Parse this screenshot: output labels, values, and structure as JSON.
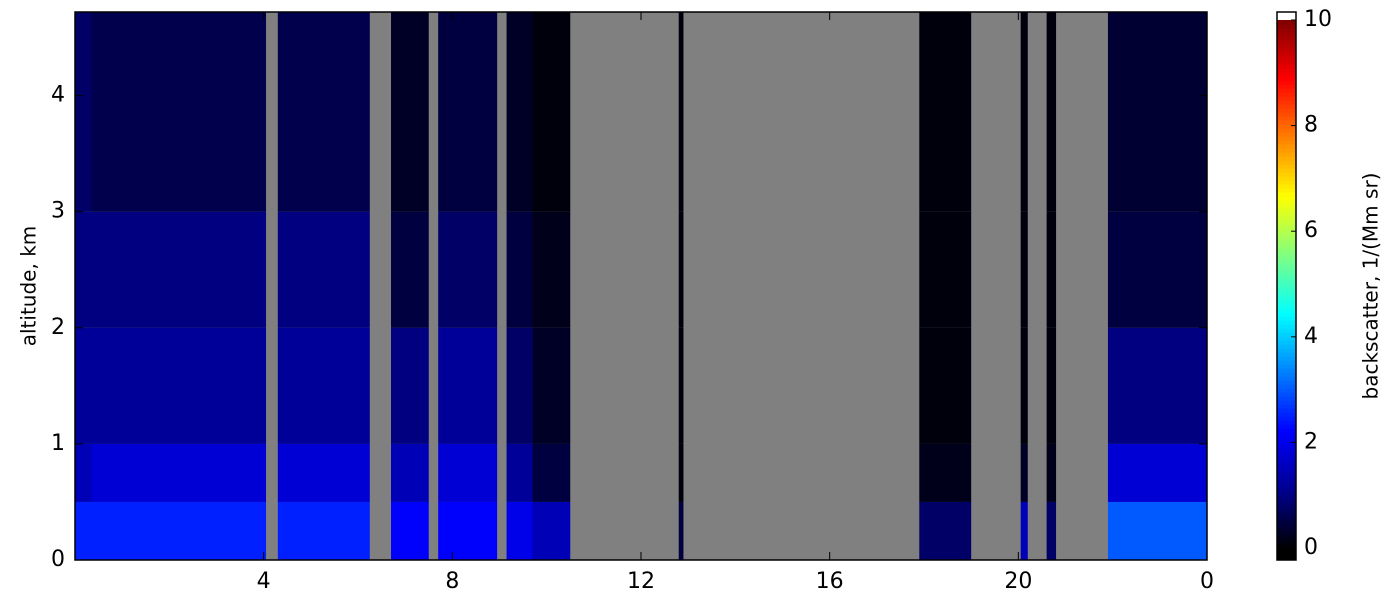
{
  "chart_data": {
    "type": "heatmap",
    "ylabel": "altitude, km",
    "colorbar_label": "backscatter, 1/(Mm sr)",
    "x": [
      0,
      0.35,
      4.05,
      4.3,
      6.25,
      6.7,
      7.5,
      7.7,
      8.95,
      9.15,
      9.7,
      10.5,
      12.8,
      12.9,
      17.9,
      19.0,
      20.05,
      20.2,
      20.6,
      20.8,
      21.9,
      24
    ],
    "y": [
      0,
      0.5,
      1,
      2,
      3,
      4.72
    ],
    "values": [
      [
        2.5,
        1.5,
        1.2,
        1.0,
        0.8
      ],
      [
        2.5,
        1.8,
        1.2,
        1.0,
        0.6
      ],
      [
        null,
        null,
        null,
        null,
        null
      ],
      [
        2.5,
        1.8,
        1.2,
        1.0,
        0.6
      ],
      [
        null,
        null,
        null,
        null,
        null
      ],
      [
        2.2,
        1.5,
        1.0,
        0.5,
        0.3
      ],
      [
        null,
        null,
        null,
        null,
        null
      ],
      [
        2.2,
        1.8,
        1.2,
        0.8,
        0.5
      ],
      [
        null,
        null,
        null,
        null,
        null
      ],
      [
        2.0,
        1.2,
        0.8,
        0.5,
        0.3
      ],
      [
        1.5,
        0.5,
        0.3,
        0.2,
        0.1
      ],
      [
        null,
        null,
        null,
        null,
        null
      ],
      [
        0.5,
        0.1,
        0.1,
        0.1,
        0.1
      ],
      [
        null,
        null,
        null,
        null,
        null
      ],
      [
        0.8,
        0.2,
        0.1,
        0.1,
        0.1
      ],
      [
        null,
        null,
        null,
        null,
        null
      ],
      [
        1.5,
        0.3,
        0.1,
        0.1,
        0.1
      ],
      [
        null,
        null,
        null,
        null,
        null
      ],
      [
        0.8,
        0.2,
        0.1,
        0.1,
        0.1
      ],
      [
        null,
        null,
        null,
        null,
        null
      ],
      [
        3.0,
        1.8,
        1.0,
        0.5,
        0.4
      ]
    ],
    "xlim": [
      0,
      24
    ],
    "xticks": [
      4,
      8,
      12,
      16,
      20,
      {
        "value": 24,
        "label": "0"
      }
    ],
    "ylim": [
      0,
      4.72
    ],
    "yticks": [
      0,
      1,
      2,
      3,
      4
    ],
    "zlim": [
      0,
      10
    ],
    "zticks": [
      0,
      2,
      4,
      6,
      8,
      10
    ],
    "colormap": [
      "#000000",
      "#00008f",
      "#0000ff",
      "#0080ff",
      "#00ffff",
      "#80ff80",
      "#ffff00",
      "#ff8000",
      "#ff0000",
      "#800000"
    ],
    "over_color": "#ffffff",
    "missing_color": "#808080"
  }
}
